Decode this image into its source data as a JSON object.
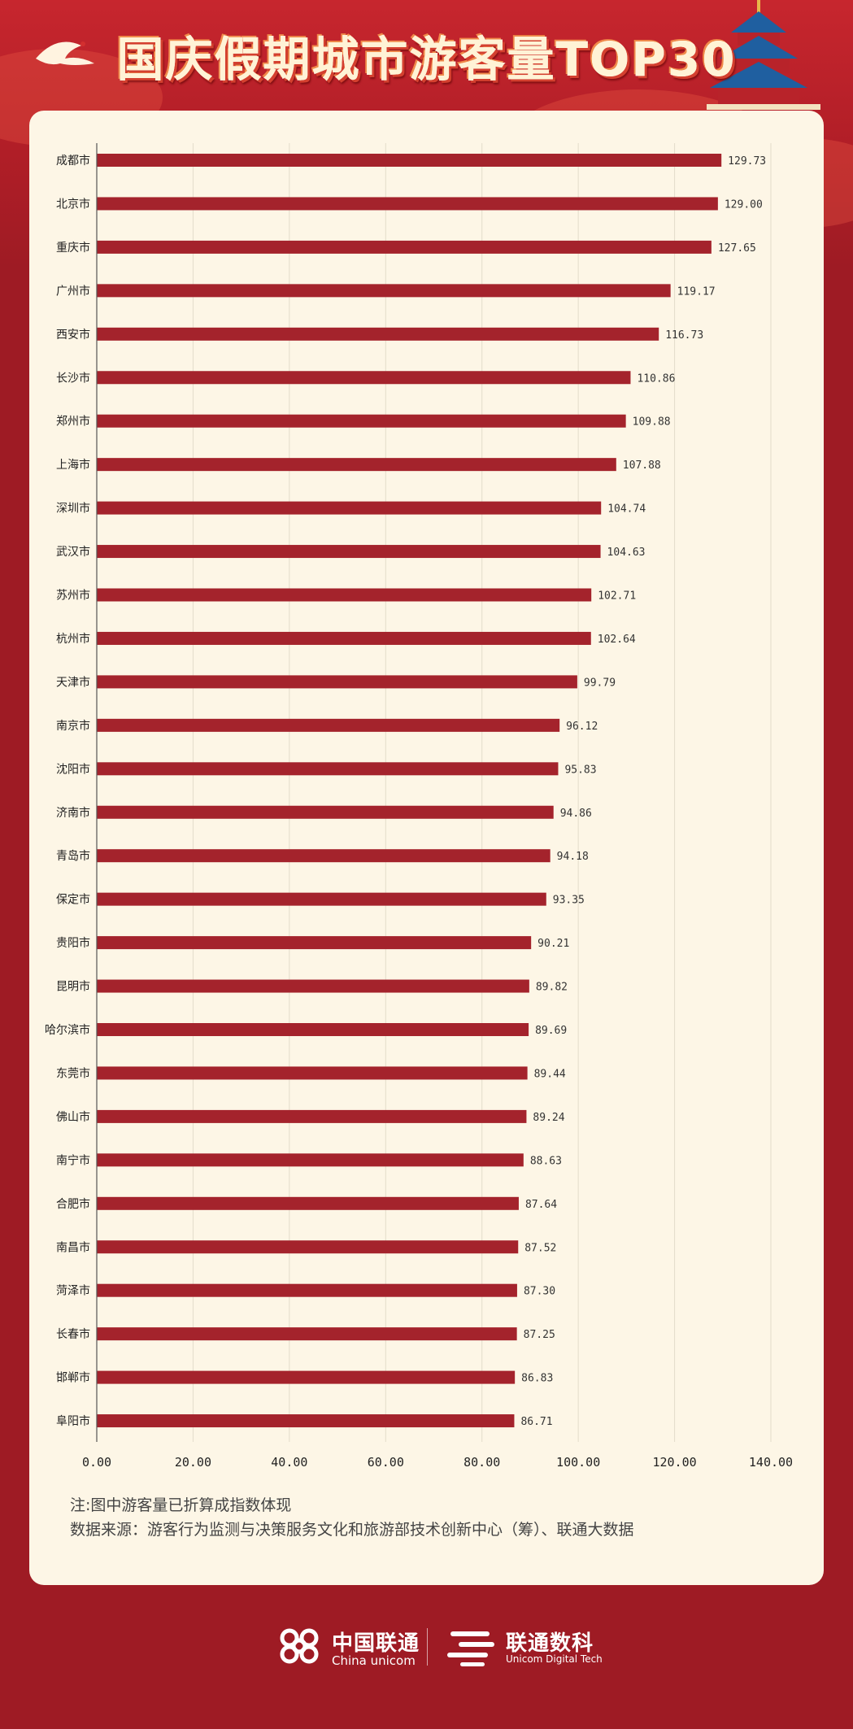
{
  "header": {
    "title": "国庆假期城市游客量TOP30"
  },
  "colors": {
    "background": "#9e1b24",
    "bar": "#a4232c",
    "card": "#fdf6e6"
  },
  "chart_data": {
    "type": "bar",
    "orientation": "horizontal",
    "title": "国庆假期城市游客量TOP30",
    "categories": [
      "成都市",
      "北京市",
      "重庆市",
      "广州市",
      "西安市",
      "长沙市",
      "郑州市",
      "上海市",
      "深圳市",
      "武汉市",
      "苏州市",
      "杭州市",
      "天津市",
      "南京市",
      "沈阳市",
      "济南市",
      "青岛市",
      "保定市",
      "贵阳市",
      "昆明市",
      "哈尔滨市",
      "东莞市",
      "佛山市",
      "南宁市",
      "合肥市",
      "南昌市",
      "菏泽市",
      "长春市",
      "邯郸市",
      "阜阳市"
    ],
    "values": [
      129.73,
      129.0,
      127.65,
      119.17,
      116.73,
      110.86,
      109.88,
      107.88,
      104.74,
      104.63,
      102.71,
      102.64,
      99.79,
      96.12,
      95.83,
      94.86,
      94.18,
      93.35,
      90.21,
      89.82,
      89.69,
      89.44,
      89.24,
      88.63,
      87.64,
      87.52,
      87.3,
      87.25,
      86.83,
      86.71
    ],
    "value_labels": [
      "129.73",
      "129.00",
      "127.65",
      "119.17",
      "116.73",
      "110.86",
      "109.88",
      "107.88",
      "104.74",
      "104.63",
      "102.71",
      "102.64",
      "99.79",
      "96.12",
      "95.83",
      "94.86",
      "94.18",
      "93.35",
      "90.21",
      "89.82",
      "89.69",
      "89.44",
      "89.24",
      "88.63",
      "87.64",
      "87.52",
      "87.30",
      "87.25",
      "86.83",
      "86.71"
    ],
    "x_ticks": [
      "0.00",
      "20.00",
      "40.00",
      "60.00",
      "80.00",
      "100.00",
      "120.00",
      "140.00"
    ],
    "xlim": [
      0,
      140
    ],
    "grid": "vertical"
  },
  "notes": {
    "line1": "注:图中游客量已折算成指数体现",
    "line2": "数据来源：游客行为监测与决策服务文化和旅游部技术创新中心（筹）、联通大数据"
  },
  "footer": {
    "unicom_cn": "中国联通",
    "unicom_en": "China unicom",
    "digital_cn": "联通数科",
    "digital_en": "Unicom Digital Tech"
  }
}
